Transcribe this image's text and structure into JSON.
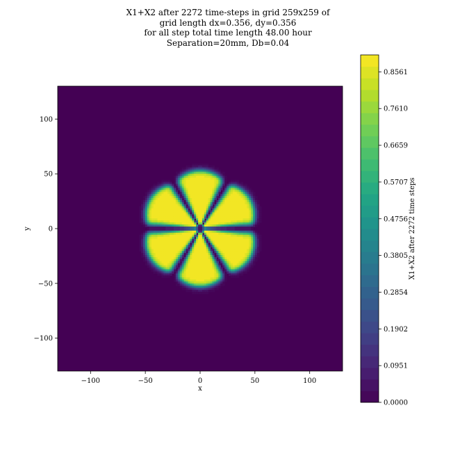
{
  "chart_data": {
    "type": "heatmap",
    "title_lines": [
      "X1+X2 after 2272 time-steps in grid 259x259 of",
      "grid length dx=0.356, dy=0.356",
      "for all step total time length 48.00 hour",
      "Separation=20mm, Db=0.04"
    ],
    "xlabel": "x",
    "ylabel": "y",
    "xlim": [
      -130,
      130
    ],
    "ylim": [
      -130,
      130
    ],
    "xticks": [
      -100,
      -50,
      0,
      50,
      100
    ],
    "yticks": [
      -100,
      -50,
      0,
      50,
      100
    ],
    "xtick_labels": [
      "−100",
      "−50",
      "0",
      "50",
      "100"
    ],
    "ytick_labels": [
      "−100",
      "−50",
      "0",
      "50",
      "100"
    ],
    "field": {
      "description_shape": "six-lobed flower of high concentration centred at origin",
      "background_value": 0.0,
      "peak_value": 0.89,
      "lobe_count": 6,
      "lobe_radius": 53,
      "lobe_angles_deg": [
        90,
        150,
        210,
        270,
        330,
        30
      ]
    },
    "colorbar": {
      "label": "X1+X2 after 2272 time steps",
      "vmin": 0.0,
      "vmax": 0.9,
      "levels": 30,
      "tick_values": [
        0.0,
        0.0951,
        0.1902,
        0.2854,
        0.3805,
        0.4756,
        0.5707,
        0.6659,
        0.761,
        0.8561
      ],
      "tick_labels": [
        "0.0000",
        "0.0951",
        "0.1902",
        "0.2854",
        "0.3805",
        "0.4756",
        "0.5707",
        "0.6659",
        "0.7610",
        "0.8561"
      ]
    },
    "colormap": "viridis",
    "grid": false
  }
}
